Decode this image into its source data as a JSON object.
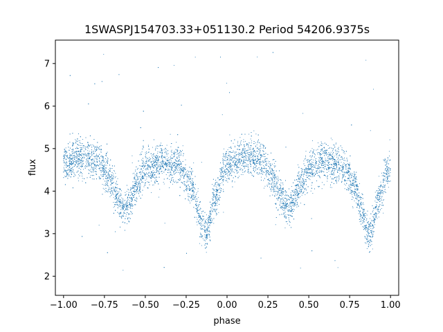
{
  "chart_data": {
    "type": "scatter",
    "title": "1SWASPJ154703.33+051130.2 Period 54206.9375s",
    "xlabel": "phase",
    "ylabel": "flux",
    "xlim": [
      -1.05,
      1.05
    ],
    "ylim": [
      1.55,
      7.55
    ],
    "x_ticks": [
      -1.0,
      -0.75,
      -0.5,
      -0.25,
      0.0,
      0.25,
      0.5,
      0.75,
      1.0
    ],
    "x_tick_labels": [
      "−1.00",
      "−0.75",
      "−0.50",
      "−0.25",
      "0.00",
      "0.25",
      "0.50",
      "0.75",
      "1.00"
    ],
    "y_ticks": [
      2,
      3,
      4,
      5,
      6,
      7
    ],
    "y_tick_labels": [
      "2",
      "3",
      "4",
      "5",
      "6",
      "7"
    ],
    "grid": false,
    "point_color": "#1f77b4",
    "light_curve": {
      "phase": [
        -1.0,
        -0.9,
        -0.8,
        -0.72,
        -0.68,
        -0.64,
        -0.62,
        -0.6,
        -0.56,
        -0.5,
        -0.4,
        -0.3,
        -0.22,
        -0.18,
        -0.15,
        -0.13,
        -0.11,
        -0.08,
        0.0,
        0.1,
        0.2,
        0.28,
        0.32,
        0.36,
        0.38,
        0.4,
        0.44,
        0.5,
        0.6,
        0.7,
        0.78,
        0.82,
        0.85,
        0.87,
        0.89,
        0.92,
        1.0
      ],
      "flux": [
        4.65,
        4.8,
        4.75,
        4.35,
        3.95,
        3.65,
        3.6,
        3.7,
        4.1,
        4.5,
        4.7,
        4.6,
        4.15,
        3.6,
        3.15,
        3.0,
        3.2,
        3.8,
        4.6,
        4.8,
        4.75,
        4.35,
        3.95,
        3.65,
        3.6,
        3.7,
        4.1,
        4.5,
        4.7,
        4.6,
        4.15,
        3.6,
        3.15,
        3.0,
        3.2,
        3.8,
        4.6
      ]
    },
    "scatter_width": 0.22,
    "outlier_fraction": 0.012
  }
}
